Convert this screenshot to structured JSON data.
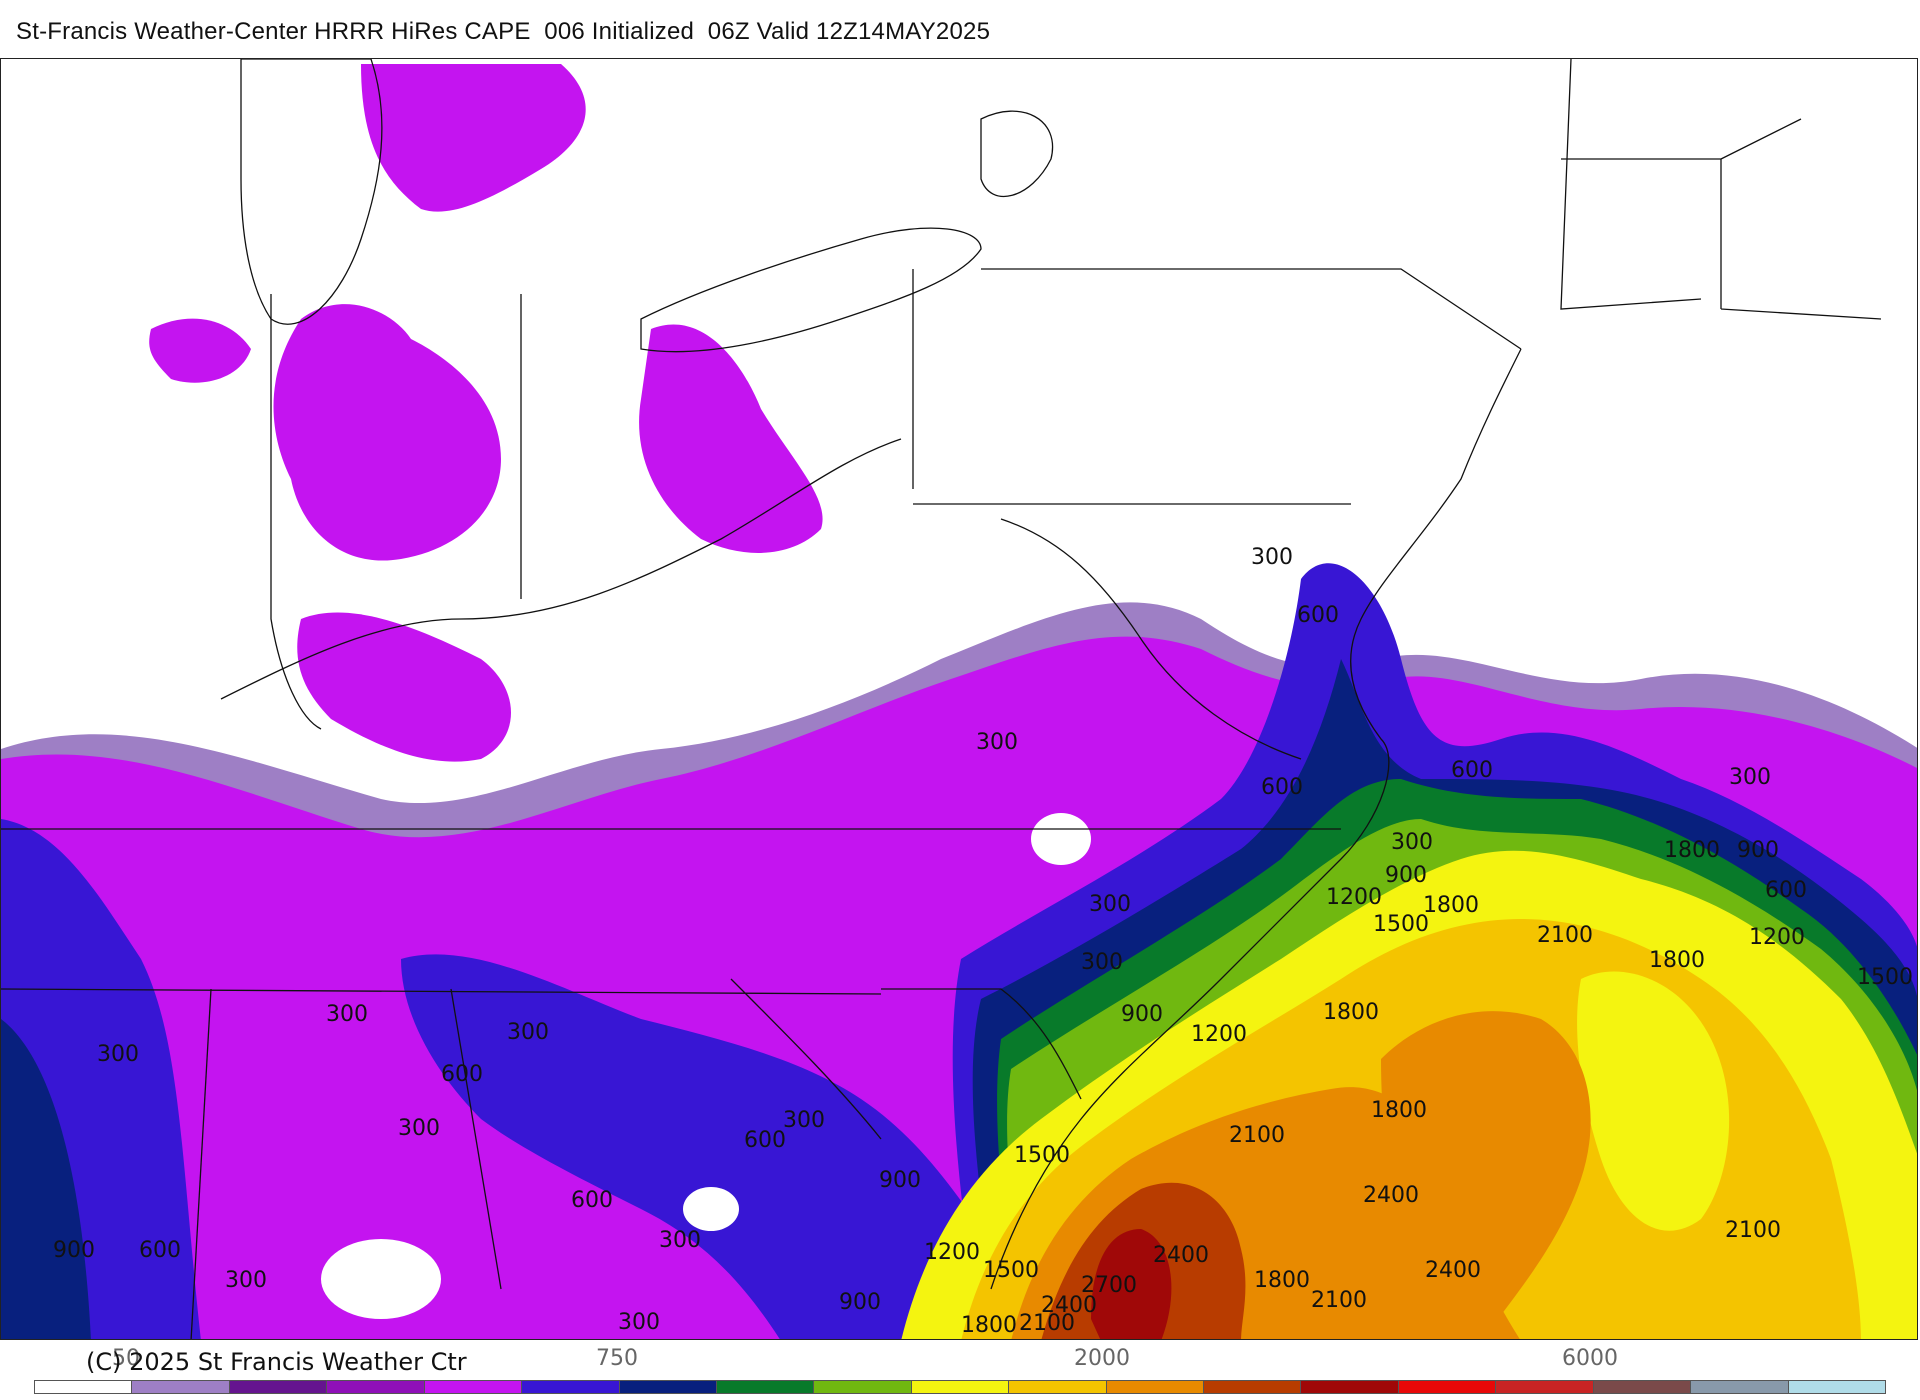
{
  "header": {
    "title": "St-Francis Weather-Center HRRR HiRes CAPE  006 Initialized  06Z Valid 12Z14MAY2025"
  },
  "footer": {
    "copyright": "(C) 2025 St Francis Weather Ctr",
    "scale_ticks": [
      {
        "label": "50"
      },
      {
        "label": "750"
      },
      {
        "label": "2000"
      },
      {
        "label": "6000"
      }
    ]
  },
  "colorbar": {
    "colors": [
      "#ffffff",
      "#9e7fc5",
      "#65148f",
      "#8f10b8",
      "#c414f0",
      "#3816d4",
      "#08207e",
      "#087a2a",
      "#70b810",
      "#f4f410",
      "#f4c400",
      "#e88a00",
      "#b83c00",
      "#a00808",
      "#e80808",
      "#c82424",
      "#7a4a4a",
      "#8899aa",
      "#b0dce8"
    ]
  },
  "map": {
    "contour_labels": [
      {
        "text": "300"
      },
      {
        "text": "600"
      },
      {
        "text": "300"
      },
      {
        "text": "600"
      },
      {
        "text": "300"
      },
      {
        "text": "600"
      },
      {
        "text": "300"
      },
      {
        "text": "300"
      },
      {
        "text": "1800"
      },
      {
        "text": "900"
      },
      {
        "text": "600"
      },
      {
        "text": "1200"
      },
      {
        "text": "1500"
      },
      {
        "text": "1200"
      },
      {
        "text": "900"
      },
      {
        "text": "1800"
      },
      {
        "text": "1500"
      },
      {
        "text": "2100"
      },
      {
        "text": "1800"
      },
      {
        "text": "300"
      },
      {
        "text": "900"
      },
      {
        "text": "1200"
      },
      {
        "text": "1800"
      },
      {
        "text": "300"
      },
      {
        "text": "600"
      },
      {
        "text": "300"
      },
      {
        "text": "300"
      },
      {
        "text": "900"
      },
      {
        "text": "600"
      },
      {
        "text": "300"
      },
      {
        "text": "300"
      },
      {
        "text": "300"
      },
      {
        "text": "600"
      },
      {
        "text": "300"
      },
      {
        "text": "600"
      },
      {
        "text": "900"
      },
      {
        "text": "2100"
      },
      {
        "text": "1800"
      },
      {
        "text": "1500"
      },
      {
        "text": "2400"
      },
      {
        "text": "1200"
      },
      {
        "text": "2400"
      },
      {
        "text": "2400"
      },
      {
        "text": "1800"
      },
      {
        "text": "2100"
      },
      {
        "text": "2400"
      },
      {
        "text": "1800"
      },
      {
        "text": "2100"
      },
      {
        "text": "1500"
      },
      {
        "text": "2700"
      },
      {
        "text": "2100"
      },
      {
        "text": "300"
      },
      {
        "text": "900"
      }
    ]
  }
}
